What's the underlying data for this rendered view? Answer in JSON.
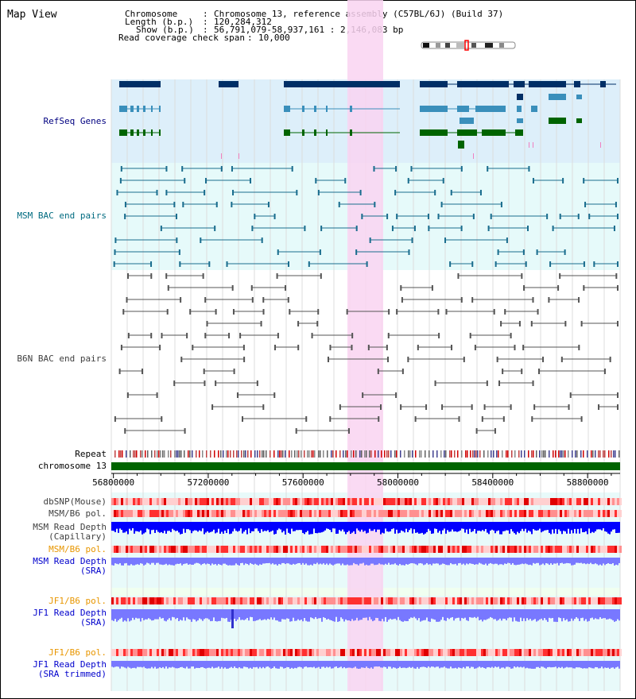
{
  "title": "Map View",
  "info": {
    "chromosome_key": "Chromosome",
    "chromosome_val": "Chromosome 13, reference assembly (C57BL/6J) (Build 37)",
    "length_key": "Length (b.p.)",
    "length_val": "120,284,312",
    "show_key": "Show (b.p.)",
    "show_val": "56,791,079-58,937,161 : 2,146,083 bp",
    "span_key": "Read coverage check span",
    "span_val": "10,000"
  },
  "sep": ":",
  "tracks": {
    "refseq": "RefSeq Genes",
    "msm_bac": "MSM BAC end pairs",
    "b6n_bac": "B6N BAC end pairs",
    "repeat": "Repeat",
    "chromosome": "chromosome 13",
    "dbsnp": "dbSNP(Mouse)",
    "msm_b6_pol_1": "MSM/B6 pol.",
    "msm_depth_cap_1": "MSM Read Depth",
    "msm_depth_cap_2": "(Capillary)",
    "msm_b6_pol_2": "MSM/B6 pol.",
    "msm_depth_sra_1": "MSM Read Depth",
    "msm_depth_sra_2": "(SRA)",
    "jf1_b6_pol_1": "JF1/B6 pol.",
    "jf1_depth_sra_1": "JF1 Read Depth",
    "jf1_depth_sra_2": "(SRA)",
    "jf1_b6_pol_2": "JF1/B6 pol.",
    "jf1_depth_trim_1": "JF1 Read Depth",
    "jf1_depth_trim_2": "(SRA trimmed)"
  },
  "ruler": {
    "labels": [
      "56800000",
      "57200000",
      "57600000",
      "58000000",
      "58400000",
      "58800000"
    ],
    "values": [
      56800000,
      57200000,
      57600000,
      58000000,
      58400000,
      58800000
    ]
  },
  "colors": {
    "refseq_bg": "#ddeffa",
    "msm_bg": "#e6fafa",
    "highlight": "#f9d4f1",
    "gene_dark": "#002f66",
    "gene_mid": "#3a8fbb",
    "gene_green": "#006400",
    "msm_pair": "#1a6d8e",
    "b6n_pair": "#555555",
    "chrom_bar": "#006400",
    "label_dark": "#000080",
    "label_teal": "#006b80",
    "label_gray": "#404040",
    "label_orange": "#e89600",
    "label_blue": "#0000cc",
    "snp_red": "#ff3030",
    "depth_blue": "#0000ff",
    "depth_violet": "#7878ff"
  }
}
